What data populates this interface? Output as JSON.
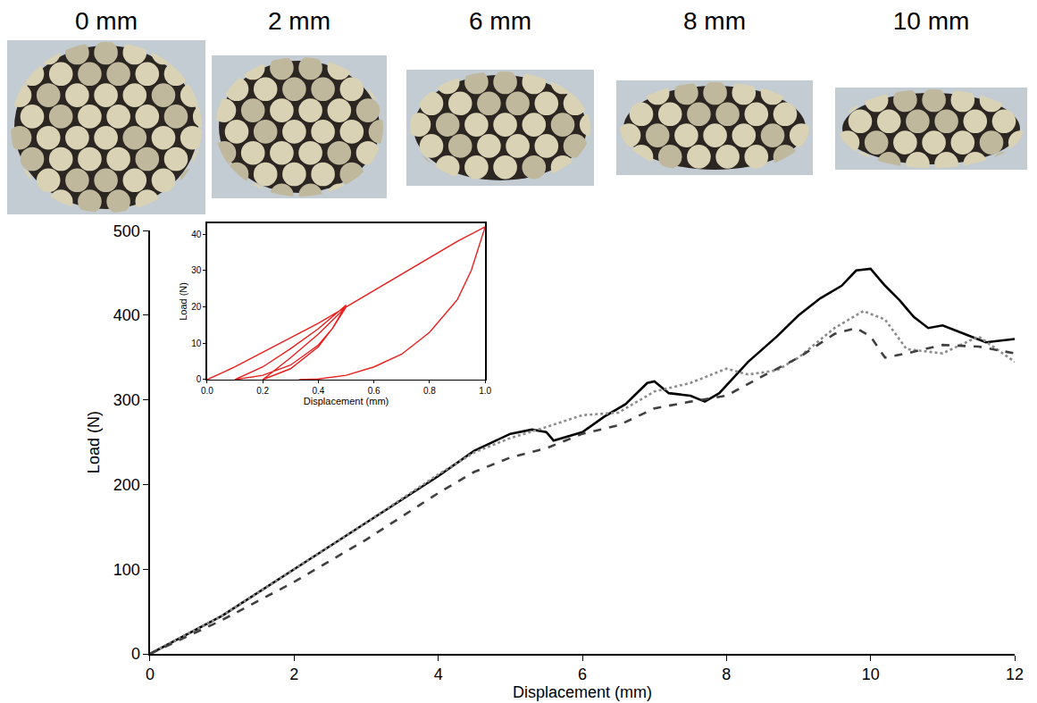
{
  "images": [
    {
      "label": "0 mm"
    },
    {
      "label": "2 mm"
    },
    {
      "label": "6 mm"
    },
    {
      "label": "8 mm"
    },
    {
      "label": "10 mm"
    }
  ],
  "chart_data": [
    {
      "type": "line",
      "x_label": "Displacement (mm)",
      "y_label": "Load (N)",
      "xlim": [
        0,
        12
      ],
      "ylim": [
        0,
        500
      ],
      "xticks": [
        0,
        2,
        4,
        6,
        8,
        10,
        12
      ],
      "yticks": [
        0,
        100,
        200,
        300,
        400,
        500
      ],
      "grid": false,
      "series": [
        {
          "color": "#000000",
          "line_style": "solid",
          "x": [
            0,
            1,
            2,
            3,
            4,
            4.5,
            5,
            5.3,
            5.5,
            5.6,
            6,
            6.3,
            6.6,
            6.9,
            7.0,
            7.2,
            7.5,
            7.7,
            7.9,
            8.3,
            8.7,
            9.0,
            9.3,
            9.6,
            9.8,
            10.0,
            10.2,
            10.4,
            10.6,
            10.8,
            11.0,
            11.3,
            11.6,
            12
          ],
          "values": [
            0,
            45,
            100,
            155,
            210,
            240,
            260,
            265,
            262,
            252,
            262,
            280,
            295,
            320,
            322,
            308,
            305,
            298,
            308,
            345,
            375,
            400,
            420,
            435,
            453,
            455,
            435,
            418,
            398,
            385,
            388,
            378,
            368,
            372
          ]
        },
        {
          "color": "#8c8c8c",
          "line_style": "dot",
          "x": [
            0,
            1,
            2,
            3,
            4,
            4.5,
            5,
            5.5,
            6,
            6.5,
            7,
            7.5,
            8,
            8.3,
            8.7,
            9.0,
            9.5,
            9.9,
            10.2,
            10.5,
            11,
            11.5,
            12
          ],
          "values": [
            0,
            45,
            100,
            155,
            212,
            238,
            255,
            268,
            282,
            285,
            310,
            320,
            337,
            330,
            335,
            350,
            385,
            405,
            395,
            360,
            355,
            375,
            345
          ]
        },
        {
          "color": "#404040",
          "line_style": "dash",
          "x": [
            0,
            1,
            2,
            3,
            4,
            4.5,
            5,
            5.5,
            6,
            6.5,
            7,
            7.5,
            8,
            8.5,
            9,
            9.5,
            9.8,
            10,
            10.2,
            10.5,
            11,
            11.5,
            12
          ],
          "values": [
            0,
            40,
            85,
            135,
            190,
            215,
            232,
            243,
            260,
            270,
            290,
            298,
            305,
            328,
            350,
            378,
            385,
            375,
            350,
            355,
            365,
            363,
            355
          ]
        }
      ]
    },
    {
      "type": "line",
      "x_label": "Displacement (mm)",
      "y_label": "Load (N)",
      "xlim": [
        0,
        1
      ],
      "ylim": [
        0,
        43
      ],
      "xticks": [
        {
          "value": 0,
          "label": "0.0"
        },
        0.2,
        0.4,
        0.6,
        0.8,
        {
          "value": 1,
          "label": "1.0"
        }
      ],
      "yticks": [
        0,
        10,
        20,
        30,
        40
      ],
      "grid": false,
      "series": [
        {
          "color": "#e8201e",
          "line_style": "solid",
          "x": [
            0,
            0.1,
            0.2,
            0.3,
            0.4,
            0.5,
            0.45,
            0.4,
            0.3,
            0.2,
            0.1,
            0.2,
            0.3,
            0.4,
            0.5,
            0.45,
            0.4,
            0.3,
            0.22,
            0.2,
            0.3,
            0.4,
            0.5,
            0.6,
            0.7,
            0.8,
            0.9,
            1.0,
            0.95,
            0.9,
            0.8,
            0.7,
            0.6,
            0.5,
            0.4,
            0.33
          ],
          "values": [
            0,
            3.5,
            7.5,
            11.5,
            15.5,
            20,
            14,
            9.5,
            4,
            1.2,
            0,
            3.5,
            8.5,
            14,
            20.5,
            14,
            9,
            3,
            0.5,
            0,
            6,
            12.5,
            20,
            24.5,
            29,
            33.5,
            38,
            42,
            30,
            22,
            13,
            7,
            3.5,
            1.2,
            0.2,
            0
          ]
        }
      ]
    }
  ]
}
